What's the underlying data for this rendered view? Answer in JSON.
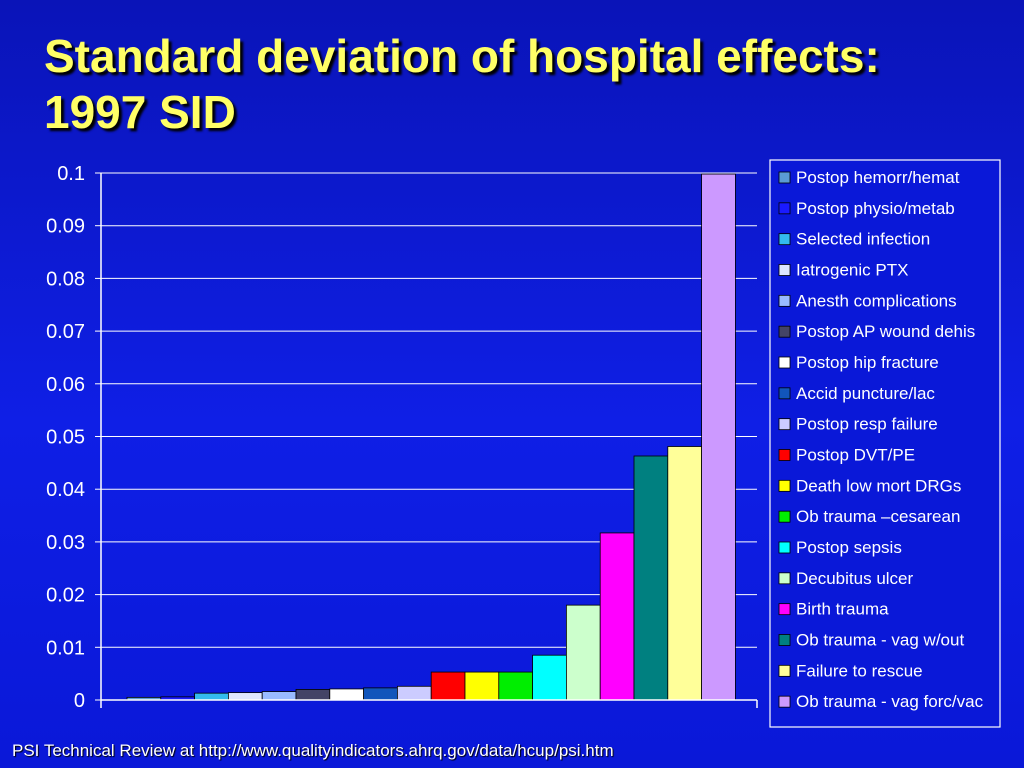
{
  "slide": {
    "title_line1": "Standard deviation of hospital effects:",
    "title_line2": "1997 SID",
    "footer": "PSI Technical Review at http://www.qualityindicators.ahrq.gov/data/hcup/psi.htm"
  },
  "colors": {
    "title": "#ffff66",
    "background": "#0f1fe6",
    "grid": "#ffffff",
    "legend_bg": "#0a18d8"
  },
  "chart_data": {
    "type": "bar",
    "title": "",
    "xlabel": "",
    "ylabel": "",
    "ylim": [
      0,
      0.1
    ],
    "yticks": [
      "0",
      "0.01",
      "0.02",
      "0.03",
      "0.04",
      "0.05",
      "0.06",
      "0.07",
      "0.08",
      "0.09",
      "0.1"
    ],
    "grid": true,
    "legend_position": "right",
    "series": [
      {
        "name": "Postop hemorr/hemat",
        "value": 0.0005,
        "color": "#5b9bd5"
      },
      {
        "name": "Postop physio/metab",
        "value": 0.0006,
        "color": "#1a1aff"
      },
      {
        "name": "Selected infection",
        "value": 0.0013,
        "color": "#33bbee"
      },
      {
        "name": "Iatrogenic PTX",
        "value": 0.0014,
        "color": "#dde6ff"
      },
      {
        "name": "Anesth complications",
        "value": 0.0016,
        "color": "#99bbff"
      },
      {
        "name": "Postop AP wound dehis",
        "value": 0.002,
        "color": "#444466"
      },
      {
        "name": "Postop hip fracture",
        "value": 0.0021,
        "color": "#ffffff"
      },
      {
        "name": "Accid puncture/lac",
        "value": 0.0023,
        "color": "#1155bb"
      },
      {
        "name": "Postop resp failure",
        "value": 0.0026,
        "color": "#ccccff"
      },
      {
        "name": "Postop DVT/PE",
        "value": 0.0053,
        "color": "#ff0000"
      },
      {
        "name": "Death low mort DRGs",
        "value": 0.0053,
        "color": "#ffff00"
      },
      {
        "name": "Ob trauma –cesarean",
        "value": 0.0053,
        "color": "#00ee00"
      },
      {
        "name": "Postop sepsis",
        "value": 0.0085,
        "color": "#00ffff"
      },
      {
        "name": "Decubitus ulcer",
        "value": 0.018,
        "color": "#ccffcc"
      },
      {
        "name": "Birth trauma",
        "value": 0.0317,
        "color": "#ff00ff"
      },
      {
        "name": "Ob trauma - vag w/out",
        "value": 0.0463,
        "color": "#008080"
      },
      {
        "name": "Failure to rescue",
        "value": 0.0481,
        "color": "#ffff99"
      },
      {
        "name": "Ob trauma - vag forc/vac",
        "value": 0.0998,
        "color": "#cc99ff"
      }
    ]
  }
}
